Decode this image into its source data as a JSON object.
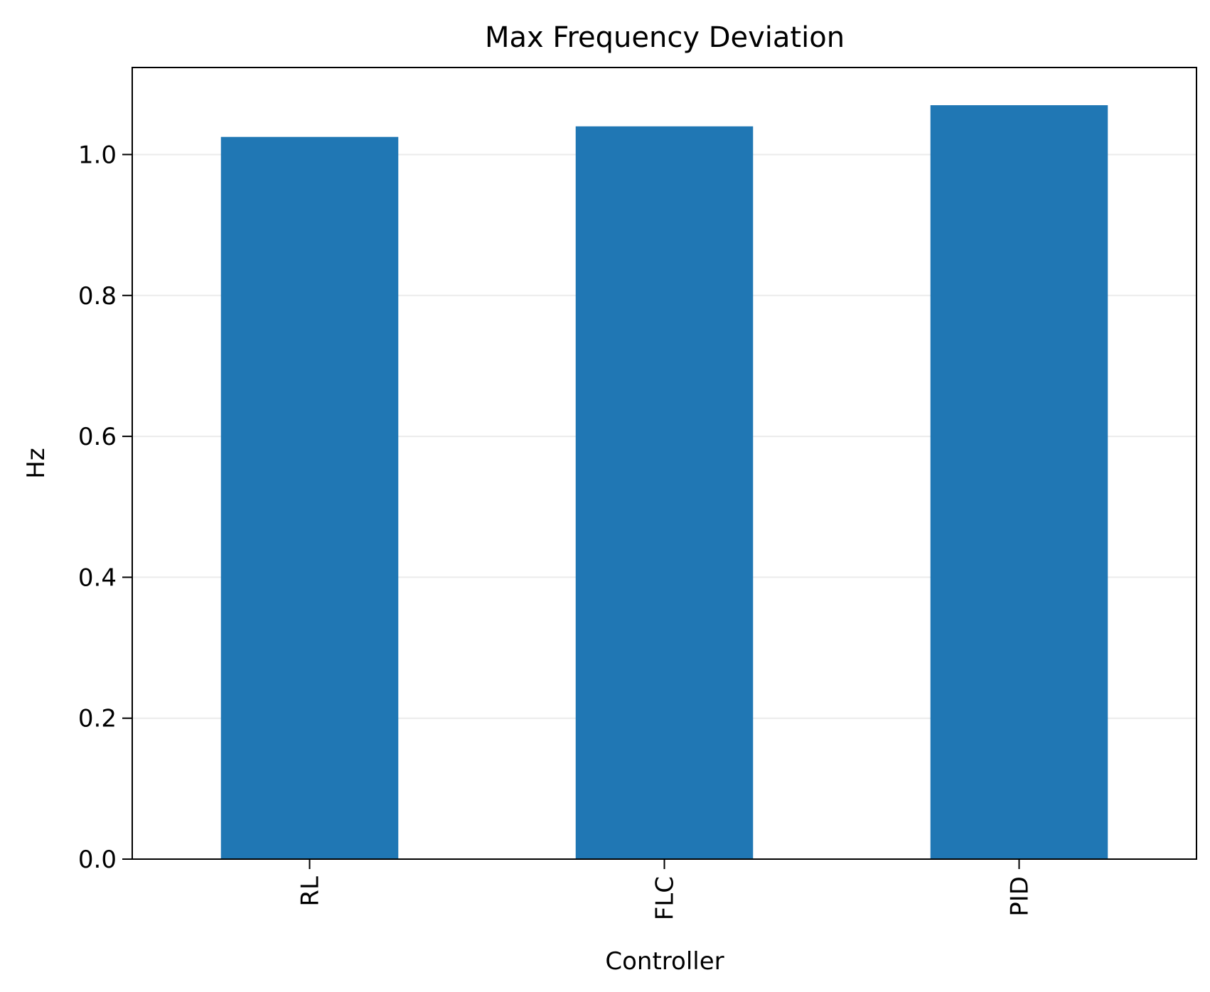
{
  "chart_data": {
    "type": "bar",
    "title": "Max Frequency Deviation",
    "xlabel": "Controller",
    "ylabel": "Hz",
    "categories": [
      "RL",
      "FLC",
      "PID"
    ],
    "values": [
      1.025,
      1.04,
      1.07
    ],
    "ylim": [
      0,
      1.1235
    ],
    "yticks": [
      "0.0",
      "0.2",
      "0.4",
      "0.6",
      "0.8",
      "1.0"
    ],
    "ytick_values": [
      0,
      0.2,
      0.4,
      0.6,
      0.8,
      1.0
    ],
    "grid": "horizontal",
    "legend": "none",
    "colors": {
      "bar": "#2077b4",
      "grid": "#ebebeb",
      "axes": "#000000"
    }
  }
}
